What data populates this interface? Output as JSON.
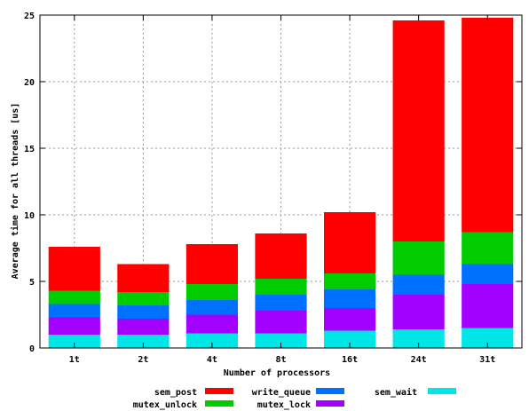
{
  "chart_data": {
    "type": "bar",
    "stacked": true,
    "title": "",
    "xlabel": "Number of processors",
    "ylabel": "Average time for all threads [us]",
    "ylim": [
      0,
      25
    ],
    "yticks": [
      0,
      5,
      10,
      15,
      20,
      25
    ],
    "grid": true,
    "legend_position": "bottom",
    "categories": [
      "1t",
      "2t",
      "4t",
      "8t",
      "16t",
      "24t",
      "31t"
    ],
    "series": [
      {
        "name": "sem_wait",
        "color": "#00e5e5",
        "values": [
          1.0,
          1.0,
          1.1,
          1.1,
          1.3,
          1.4,
          1.5
        ]
      },
      {
        "name": "mutex_lock",
        "color": "#a200ff",
        "values": [
          1.3,
          1.2,
          1.4,
          1.7,
          1.7,
          2.6,
          3.3
        ]
      },
      {
        "name": "write_queue",
        "color": "#0070ff",
        "values": [
          1.0,
          1.0,
          1.1,
          1.2,
          1.4,
          1.5,
          1.5
        ]
      },
      {
        "name": "mutex_unlock",
        "color": "#00cc00",
        "values": [
          1.0,
          1.0,
          1.2,
          1.2,
          1.2,
          2.5,
          2.4
        ]
      },
      {
        "name": "sem_post",
        "color": "#ff0000",
        "values": [
          3.3,
          2.1,
          3.0,
          3.4,
          4.6,
          16.6,
          16.1
        ]
      }
    ],
    "legend_order": [
      "sem_post",
      "write_queue",
      "sem_wait",
      "mutex_unlock",
      "mutex_lock"
    ]
  }
}
